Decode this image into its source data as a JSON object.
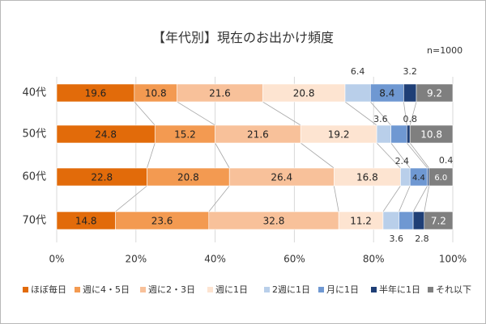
{
  "chart_data": {
    "type": "bar",
    "orientation": "horizontal",
    "stacked": true,
    "title": "【年代別】現在のお出かけ頻度",
    "note": "n=1000",
    "categories": [
      "40代",
      "50代",
      "60代",
      "70代"
    ],
    "series": [
      {
        "name": "ほぼ毎日",
        "color": "#e26b0a",
        "values": [
          19.6,
          24.8,
          22.8,
          14.8
        ]
      },
      {
        "name": "週に4・5日",
        "color": "#f39a51",
        "values": [
          10.8,
          15.2,
          20.8,
          23.6
        ]
      },
      {
        "name": "週に2・3日",
        "color": "#f8c19a",
        "values": [
          21.6,
          21.6,
          26.4,
          32.8
        ]
      },
      {
        "name": "週に1日",
        "color": "#fde4d1",
        "values": [
          20.8,
          19.2,
          16.8,
          11.2
        ]
      },
      {
        "name": "2週に1日",
        "color": "#b9cfea",
        "values": [
          6.4,
          3.6,
          2.4,
          4.0
        ]
      },
      {
        "name": "月に1日",
        "color": "#6f98d2",
        "values": [
          8.4,
          4.0,
          4.4,
          3.6
        ]
      },
      {
        "name": "半年に1日",
        "color": "#1f3f76",
        "values": [
          3.2,
          0.8,
          0.4,
          2.8
        ]
      },
      {
        "name": "それ以下",
        "color": "#7f7f7f",
        "values": [
          9.2,
          10.8,
          6.0,
          7.2
        ]
      }
    ],
    "xlim": [
      0,
      100
    ],
    "x_ticks": [
      "0%",
      "20%",
      "40%",
      "60%",
      "80%",
      "100%"
    ],
    "grid": true,
    "legend": "bottom"
  }
}
